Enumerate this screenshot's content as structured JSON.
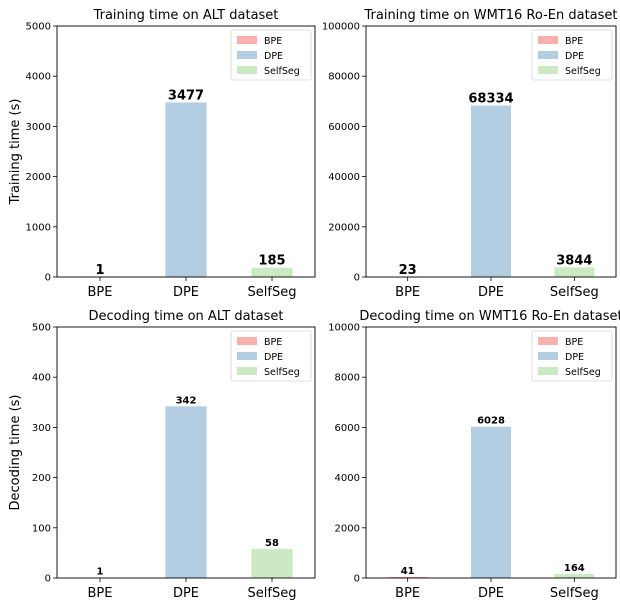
{
  "colors": {
    "BPE": "#f8b1aa",
    "DPE": "#b3cde2",
    "SelfSeg": "#cbeac4"
  },
  "legend_labels": [
    "BPE",
    "DPE",
    "SelfSeg"
  ],
  "chart_data": [
    {
      "type": "bar",
      "title": "Training time on ALT dataset",
      "ylabel": "Training time (s)",
      "categories": [
        "BPE",
        "DPE",
        "SelfSeg"
      ],
      "values": [
        1,
        3477,
        185
      ],
      "value_labels": [
        "1",
        "3477",
        "185"
      ],
      "ylim": [
        0,
        5000
      ],
      "yticks": [
        0,
        1000,
        2000,
        3000,
        4000,
        5000
      ],
      "ytick_labels": [
        "0",
        "1000",
        "2000",
        "3000",
        "4000",
        "5000"
      ],
      "legend": "top-right",
      "grid": false
    },
    {
      "type": "bar",
      "title": "Training time on WMT16 Ro-En dataset",
      "ylabel": "",
      "categories": [
        "BPE",
        "DPE",
        "SelfSeg"
      ],
      "values": [
        23,
        68334,
        3844
      ],
      "value_labels": [
        "23",
        "68334",
        "3844"
      ],
      "ylim": [
        0,
        100000
      ],
      "yticks": [
        0,
        20000,
        40000,
        60000,
        80000,
        100000
      ],
      "ytick_labels": [
        "0",
        "20000",
        "40000",
        "60000",
        "80000",
        "100000"
      ],
      "legend": "top-right",
      "grid": false
    },
    {
      "type": "bar",
      "title": "Decoding time on ALT dataset",
      "ylabel": "Decoding time (s)",
      "categories": [
        "BPE",
        "DPE",
        "SelfSeg"
      ],
      "values": [
        1,
        342,
        58
      ],
      "value_labels": [
        "1",
        "342",
        "58"
      ],
      "ylim": [
        0,
        500
      ],
      "yticks": [
        0,
        100,
        200,
        300,
        400,
        500
      ],
      "ytick_labels": [
        "0",
        "100",
        "200",
        "300",
        "400",
        "500"
      ],
      "legend": "top-right",
      "grid": false
    },
    {
      "type": "bar",
      "title": "Decoding time on WMT16 Ro-En dataset",
      "ylabel": "",
      "categories": [
        "BPE",
        "DPE",
        "SelfSeg"
      ],
      "values": [
        41,
        6028,
        164
      ],
      "value_labels": [
        "41",
        "6028",
        "164"
      ],
      "ylim": [
        0,
        10000
      ],
      "yticks": [
        0,
        2000,
        4000,
        6000,
        8000,
        10000
      ],
      "ytick_labels": [
        "0",
        "2000",
        "4000",
        "6000",
        "8000",
        "10000"
      ],
      "legend": "top-right",
      "grid": false
    }
  ]
}
